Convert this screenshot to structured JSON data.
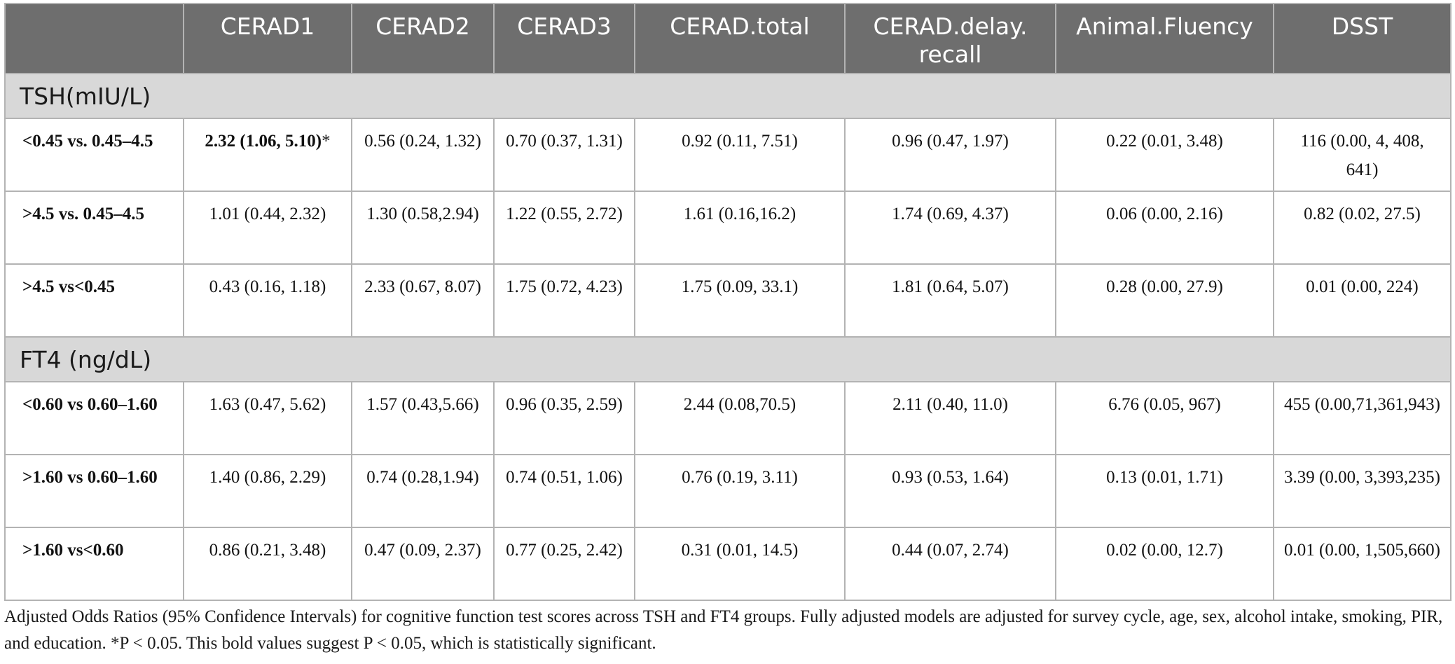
{
  "table": {
    "headers": [
      "",
      "CERAD1",
      "CERAD2",
      "CERAD3",
      "CERAD.total",
      "CERAD.delay. recall",
      "Animal.Fluency",
      "DSST"
    ],
    "groups": [
      {
        "label": "TSH(mIU/L)",
        "rows": [
          {
            "label": "<0.45 vs. 0.45–4.5",
            "cells": [
              "2.32 (1.06, 5.10)",
              "0.56 (0.24, 1.32)",
              "0.70 (0.37, 1.31)",
              "0.92 (0.11, 7.51)",
              "0.96 (0.47, 1.97)",
              "0.22 (0.01, 3.48)",
              "116 (0.00, 4, 408, 641)"
            ],
            "marker": "*"
          },
          {
            "label": ">4.5 vs. 0.45–4.5",
            "cells": [
              "1.01 (0.44, 2.32)",
              "1.30 (0.58,2.94)",
              "1.22 (0.55, 2.72)",
              "1.61 (0.16,16.2)",
              "1.74 (0.69, 4.37)",
              "0.06 (0.00, 2.16)",
              "0.82 (0.02, 27.5)"
            ]
          },
          {
            "label": ">4.5 vs<0.45",
            "cells": [
              "0.43 (0.16, 1.18)",
              "2.33 (0.67, 8.07)",
              "1.75 (0.72, 4.23)",
              "1.75 (0.09, 33.1)",
              "1.81 (0.64, 5.07)",
              "0.28 (0.00, 27.9)",
              "0.01 (0.00, 224)"
            ]
          }
        ]
      },
      {
        "label": "FT4 (ng/dL)",
        "rows": [
          {
            "label": "<0.60 vs 0.60–1.60",
            "cells": [
              "1.63 (0.47, 5.62)",
              "1.57 (0.43,5.66)",
              "0.96 (0.35, 2.59)",
              "2.44 (0.08,70.5)",
              "2.11 (0.40, 11.0)",
              "6.76 (0.05, 967)",
              "455 (0.00,71,361,943)"
            ]
          },
          {
            "label": ">1.60 vs 0.60–1.60",
            "cells": [
              "1.40 (0.86, 2.29)",
              "0.74 (0.28,1.94)",
              "0.74 (0.51, 1.06)",
              "0.76 (0.19, 3.11)",
              "0.93 (0.53, 1.64)",
              "0.13 (0.01, 1.71)",
              "3.39 (0.00, 3,393,235)"
            ]
          },
          {
            "label": ">1.60 vs<0.60",
            "cells": [
              "0.86 (0.21, 3.48)",
              "0.47 (0.09, 2.37)",
              "0.77 (0.25, 2.42)",
              "0.31 (0.01, 14.5)",
              "0.44 (0.07, 2.74)",
              "0.02 (0.00, 12.7)",
              "0.01 (0.00, 1,505,660)"
            ]
          }
        ]
      }
    ]
  },
  "footnote": "Adjusted Odds Ratios (95% Confidence Intervals) for cognitive function test scores across TSH and FT4 groups. Fully adjusted models are adjusted for survey cycle, age, sex, alcohol intake, smoking, PIR, and education. *P  <  0.05. This bold values suggest P < 0.05, which is statistically significant."
}
